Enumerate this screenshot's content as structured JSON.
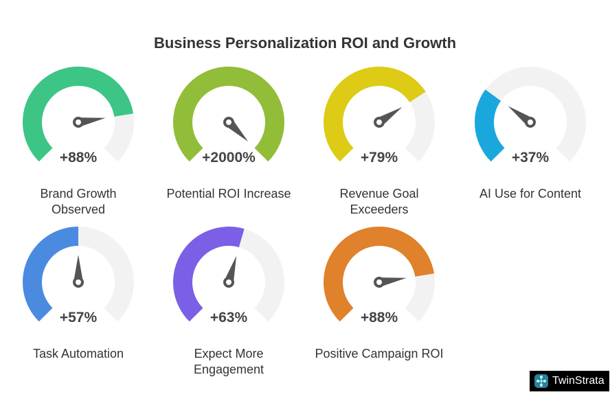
{
  "chart_data": {
    "type": "gauge",
    "title": "Business Personalization ROI and Growth",
    "gauges": [
      {
        "label": "Brand Growth Observed",
        "value": "+88%",
        "fill": 0.8,
        "color": "#3dc585"
      },
      {
        "label": "Potential ROI Increase",
        "value": "+2000%",
        "fill": 1.0,
        "color": "#92bd38"
      },
      {
        "label": "Revenue Goal Exceeders",
        "value": "+79%",
        "fill": 0.71,
        "color": "#ddcb15"
      },
      {
        "label": "AI Use for Content",
        "value": "+37%",
        "fill": 0.3,
        "color": "#1aa8dc"
      },
      {
        "label": "Task Automation",
        "value": "+57%",
        "fill": 0.5,
        "color": "#4a8be0"
      },
      {
        "label": "Expect More Engagement",
        "value": "+63%",
        "fill": 0.56,
        "color": "#7b5fe6"
      },
      {
        "label": "Positive Campaign ROI",
        "value": "+88%",
        "fill": 0.8,
        "color": "#e0812b"
      }
    ]
  },
  "brand": {
    "name": "TwinStrata"
  }
}
